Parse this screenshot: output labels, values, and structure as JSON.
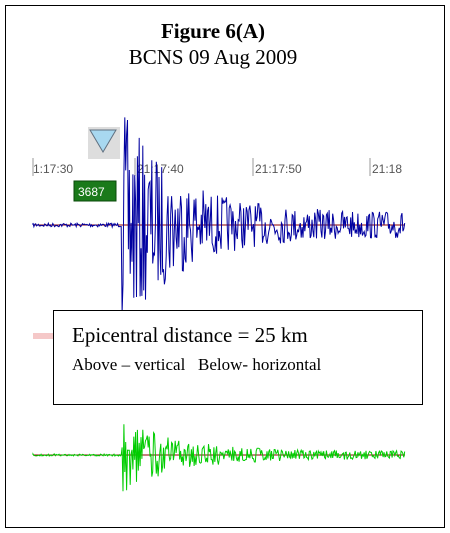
{
  "figure": {
    "title": "Figure 6(A)",
    "subtitle": "BCNS 09 Aug 2009"
  },
  "annotation": {
    "line1": "Epicentral distance = 25 km",
    "line2": "Above – vertical   Below- horizontal"
  },
  "chart_data": {
    "type": "line",
    "time_ticks": [
      "1:17:30",
      "21:17:40",
      "21:17:50",
      "21:18"
    ],
    "station_label": "3687",
    "series": [
      {
        "color": "#0000a0",
        "baseline_color": "#8b0000"
      },
      {
        "color": "#00cc00",
        "baseline_color": "#8b0000"
      }
    ]
  },
  "colors": {
    "marker": "#a8d8f0",
    "station_bg": "#1a7a1a",
    "tick_line": "#999999"
  }
}
